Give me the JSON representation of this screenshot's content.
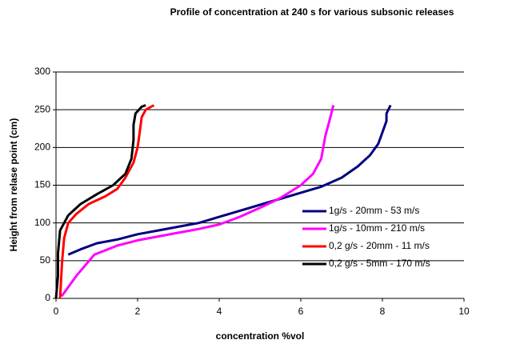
{
  "chart_data": {
    "type": "line",
    "title": "Profile of concentration at 240 s for various subsonic releases",
    "x_label": "concentration %vol",
    "y_label": "Height from relase point (cm)",
    "xlim": [
      0,
      10
    ],
    "xticks": [
      0,
      2,
      4,
      6,
      8,
      10
    ],
    "ylim": [
      0,
      300
    ],
    "yticks": [
      0,
      50,
      100,
      150,
      200,
      250,
      300
    ],
    "grid": true,
    "legend": "right",
    "series": [
      {
        "name": "1g/s - 20mm - 53 m/s",
        "color": "#000080",
        "x": [
          0.3,
          0.6,
          1,
          1.5,
          2,
          2.5,
          3,
          3.5,
          4,
          4.5,
          5,
          5.5,
          6,
          6.5,
          7,
          7.4,
          7.7,
          7.9,
          8.0,
          8.1,
          8.1,
          8.2
        ],
        "values": [
          58,
          65,
          73,
          78,
          85,
          90,
          95,
          100,
          108,
          116,
          124,
          132,
          140,
          148,
          160,
          175,
          190,
          205,
          220,
          235,
          245,
          256
        ]
      },
      {
        "name": "1g/s - 10mm - 210 m/s",
        "color": "#ff00ff",
        "x": [
          0.14,
          0.5,
          0.94,
          1.5,
          2,
          2.5,
          3,
          3.5,
          4,
          4.5,
          5,
          5.5,
          6,
          6.3,
          6.5,
          6.55,
          6.6,
          6.7,
          6.8
        ],
        "values": [
          3,
          30,
          58,
          70,
          77,
          82,
          87,
          92,
          98,
          108,
          120,
          133,
          150,
          165,
          185,
          200,
          215,
          235,
          256
        ]
      },
      {
        "name": "0,2 g/s - 20mm - 11 m/s",
        "color": "#ff0000",
        "x": [
          0.1,
          0.12,
          0.15,
          0.2,
          0.3,
          0.5,
          0.8,
          1.2,
          1.5,
          1.7,
          1.9,
          2.0,
          2.05,
          2.1,
          2.2,
          2.4
        ],
        "values": [
          0,
          20,
          50,
          80,
          100,
          112,
          125,
          135,
          145,
          160,
          180,
          200,
          220,
          240,
          250,
          256
        ]
      },
      {
        "name": "0,2 g/s - 5mm - 170 m/s",
        "color": "#000000",
        "x": [
          0,
          0.05,
          0.05,
          0.1,
          0.3,
          0.6,
          1.0,
          1.4,
          1.7,
          1.85,
          1.9,
          1.9,
          1.95,
          2.1,
          2.2
        ],
        "values": [
          0,
          30,
          60,
          90,
          110,
          125,
          138,
          150,
          165,
          185,
          210,
          230,
          245,
          254,
          256
        ]
      }
    ]
  }
}
